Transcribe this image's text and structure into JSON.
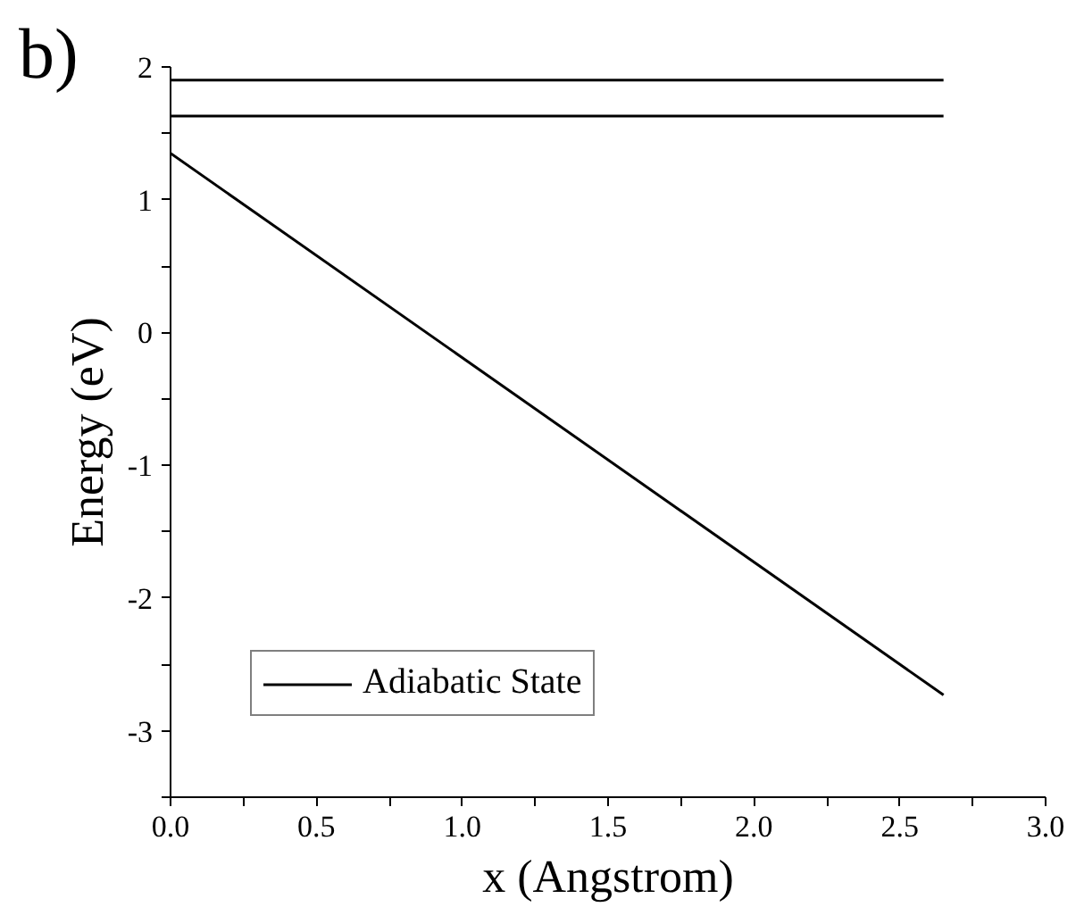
{
  "chart_data": {
    "type": "line",
    "xlabel": "x (Angstrom)",
    "ylabel": "Energy (eV)",
    "annotations": [
      "b)"
    ],
    "xlim": [
      0,
      3.0
    ],
    "ylim": [
      -3.5,
      2
    ],
    "xticks": [
      {
        "value": 0,
        "label": "0.0"
      },
      {
        "value": 0.25,
        "label": null
      },
      {
        "value": 0.5,
        "label": "0.5"
      },
      {
        "value": 0.75,
        "label": null
      },
      {
        "value": 1,
        "label": "1.0"
      },
      {
        "value": 1.25,
        "label": null
      },
      {
        "value": 1.5,
        "label": "1.5"
      },
      {
        "value": 1.75,
        "label": null
      },
      {
        "value": 2,
        "label": "2.0"
      },
      {
        "value": 2.25,
        "label": null
      },
      {
        "value": 2.5,
        "label": "2.5"
      },
      {
        "value": 2.75,
        "label": null
      },
      {
        "value": 3,
        "label": "3.0"
      }
    ],
    "yticks": [
      {
        "value": -3.5,
        "label": null
      },
      -3,
      {
        "value": -2.5,
        "label": null
      },
      -2,
      {
        "value": -1.5,
        "label": null
      },
      -1,
      {
        "value": -0.5,
        "label": null
      },
      0,
      {
        "value": 0.5,
        "label": null
      },
      1,
      {
        "value": 1.5,
        "label": null
      },
      2
    ],
    "x": [
      0,
      2.65
    ],
    "series": [
      {
        "name": "Adiabatic State",
        "color": "#000000",
        "values": [
          1.35,
          -2.73
        ]
      },
      {
        "color": "#000000",
        "values": [
          1.9,
          1.9
        ]
      },
      {
        "color": "#000000",
        "values": [
          1.63,
          1.63
        ]
      }
    ],
    "legend": "bottom left",
    "grid": false,
    "line_style": "solid",
    "marker": "none"
  }
}
